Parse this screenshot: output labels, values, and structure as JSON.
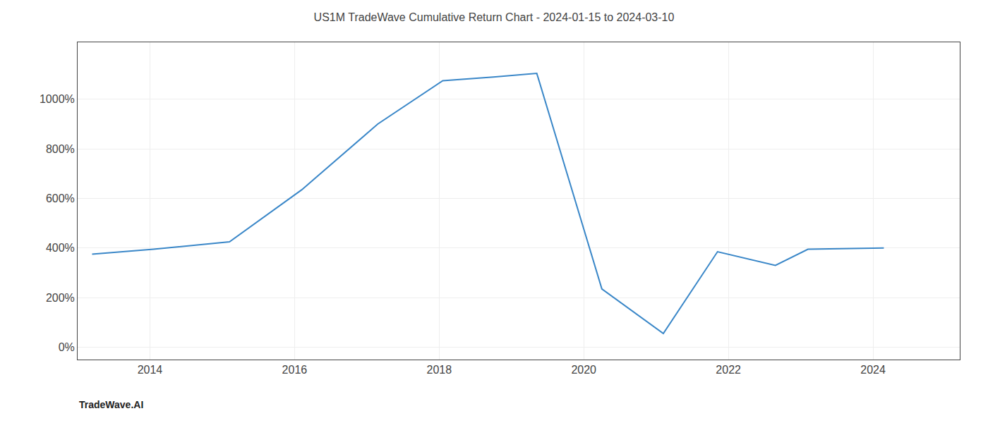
{
  "chart_data": {
    "type": "line",
    "title": "US1M TradeWave Cumulative Return Chart - 2024-01-15 to 2024-03-10",
    "annotations": [
      "TradeWave.AI"
    ],
    "x": [
      2013.2,
      2014.05,
      2015.1,
      2016.1,
      2017.15,
      2018.05,
      2018.75,
      2019.35,
      2020.25,
      2021.1,
      2021.85,
      2022.65,
      2023.1,
      2024.15
    ],
    "values": [
      375,
      395,
      425,
      635,
      900,
      1075,
      1090,
      1105,
      235,
      55,
      385,
      330,
      395,
      400
    ],
    "color": "#3a87c8",
    "xlim": [
      2013.0,
      2025.2
    ],
    "ylim": [
      -50,
      1230
    ],
    "xticks": [
      2014,
      2016,
      2018,
      2020,
      2022,
      2024
    ],
    "yticks": [
      {
        "value": 0,
        "label": "0%"
      },
      {
        "value": 200,
        "label": "200%"
      },
      {
        "value": 400,
        "label": "400%"
      },
      {
        "value": 600,
        "label": "600%"
      },
      {
        "value": 800,
        "label": "800%"
      },
      {
        "value": 1000,
        "label": "1000%"
      }
    ],
    "grid": true
  }
}
